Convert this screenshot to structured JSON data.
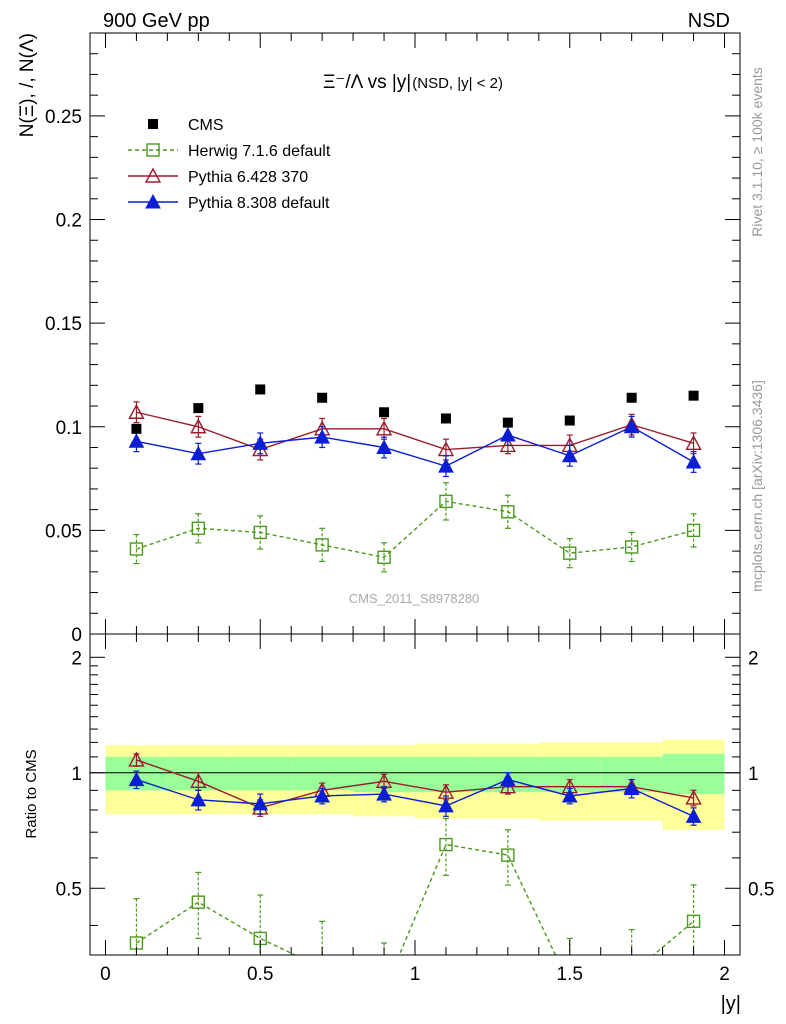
{
  "header": {
    "left": "900 GeV pp",
    "right": "NSD"
  },
  "side_labels": {
    "rivet": "Rivet 3.1.10, ≥ 100k events",
    "mcplots": "mcplots.cern.ch [arXiv:1306.3436]"
  },
  "plot_title": {
    "main": "Ξ⁻/Λ vs |y|",
    "sub": "(NSD, |y| < 2)"
  },
  "watermark": "CMS_2011_S8978280",
  "colors": {
    "cms": "#000000",
    "herwig": "#4a9a1c",
    "pythia6": "#9b1b2e",
    "pythia8": "#0a1ed6",
    "band_outer": "#ffff99",
    "band_inner": "#99ff99"
  },
  "chart_data": [
    {
      "type": "scatter",
      "name": "main",
      "ylabel": "N(Ξ), /, N(Λ)",
      "xlim": [
        -0.05,
        2.05
      ],
      "ylim": [
        0,
        0.29
      ],
      "yticks": [
        {
          "v": 0,
          "label": "0"
        },
        {
          "v": 0.05,
          "label": "0.05"
        },
        {
          "v": 0.1,
          "label": "0.1"
        },
        {
          "v": 0.15,
          "label": "0.15"
        },
        {
          "v": 0.2,
          "label": "0.2"
        },
        {
          "v": 0.25,
          "label": "0.25"
        }
      ],
      "x": [
        0.1,
        0.3,
        0.5,
        0.7,
        0.9,
        1.1,
        1.3,
        1.5,
        1.7,
        1.9
      ],
      "legend": [
        {
          "key": "cms",
          "label": "CMS"
        },
        {
          "key": "herwig",
          "label": "Herwig 7.1.6 default"
        },
        {
          "key": "pythia6",
          "label": "Pythia 6.428 370"
        },
        {
          "key": "pythia8",
          "label": "Pythia 8.308 default"
        }
      ],
      "series": [
        {
          "key": "cms",
          "values": [
            0.099,
            0.109,
            0.118,
            0.114,
            0.107,
            0.104,
            0.102,
            0.103,
            0.114,
            0.115
          ]
        },
        {
          "key": "herwig",
          "values": [
            0.041,
            0.051,
            0.049,
            0.043,
            0.037,
            0.064,
            0.059,
            0.039,
            0.042,
            0.05
          ],
          "errors": [
            0.007,
            0.007,
            0.008,
            0.008,
            0.007,
            0.009,
            0.008,
            0.007,
            0.007,
            0.008
          ]
        },
        {
          "key": "pythia6",
          "values": [
            0.107,
            0.1,
            0.089,
            0.099,
            0.099,
            0.089,
            0.091,
            0.091,
            0.101,
            0.092
          ],
          "errors": [
            0.005,
            0.005,
            0.005,
            0.005,
            0.005,
            0.005,
            0.004,
            0.005,
            0.005,
            0.005
          ]
        },
        {
          "key": "pythia8",
          "values": [
            0.093,
            0.087,
            0.092,
            0.095,
            0.09,
            0.081,
            0.096,
            0.086,
            0.1,
            0.083
          ],
          "errors": [
            0.005,
            0.005,
            0.005,
            0.005,
            0.005,
            0.005,
            0.005,
            0.005,
            0.005,
            0.005
          ]
        }
      ]
    },
    {
      "type": "scatter",
      "name": "ratio",
      "ylabel": "Ratio to CMS",
      "xlabel": "|y|",
      "xlim": [
        -0.05,
        2.05
      ],
      "ylim": [
        0.335,
        2.3
      ],
      "yticks": [
        {
          "v": 0.5,
          "label": "0.5"
        },
        {
          "v": 1,
          "label": "1"
        },
        {
          "v": 2,
          "label": "2"
        }
      ],
      "xticks": [
        {
          "v": 0,
          "label": "0"
        },
        {
          "v": 0.5,
          "label": "0.5"
        },
        {
          "v": 1,
          "label": "1"
        },
        {
          "v": 1.5,
          "label": "1.5"
        },
        {
          "v": 2,
          "label": "2"
        }
      ],
      "bins": [
        [
          0,
          0.2
        ],
        [
          0.2,
          0.4
        ],
        [
          0.4,
          0.6
        ],
        [
          0.6,
          0.8
        ],
        [
          0.8,
          1.0
        ],
        [
          1.0,
          1.2
        ],
        [
          1.2,
          1.4
        ],
        [
          1.4,
          1.6
        ],
        [
          1.6,
          1.8
        ],
        [
          1.8,
          2.0
        ]
      ],
      "band_outer": [
        [
          0.78,
          1.18
        ],
        [
          0.78,
          1.18
        ],
        [
          0.78,
          1.18
        ],
        [
          0.78,
          1.18
        ],
        [
          0.77,
          1.18
        ],
        [
          0.76,
          1.19
        ],
        [
          0.76,
          1.19
        ],
        [
          0.75,
          1.2
        ],
        [
          0.75,
          1.2
        ],
        [
          0.71,
          1.22
        ]
      ],
      "band_inner": [
        [
          0.9,
          1.1
        ],
        [
          0.9,
          1.1
        ],
        [
          0.9,
          1.1
        ],
        [
          0.9,
          1.1
        ],
        [
          0.89,
          1.1
        ],
        [
          0.89,
          1.1
        ],
        [
          0.89,
          1.1
        ],
        [
          0.89,
          1.1
        ],
        [
          0.89,
          1.1
        ],
        [
          0.88,
          1.12
        ]
      ],
      "series": [
        {
          "key": "herwig",
          "values": [
            0.36,
            0.46,
            0.37,
            0.31,
            0.27,
            0.65,
            0.61,
            0.28,
            0.3,
            0.41
          ],
          "errors": [
            0.11,
            0.09,
            0.11,
            0.1,
            0.09,
            0.11,
            0.1,
            0.09,
            0.09,
            0.1
          ]
        },
        {
          "key": "pythia6",
          "values": [
            1.08,
            0.95,
            0.81,
            0.9,
            0.95,
            0.89,
            0.92,
            0.92,
            0.92,
            0.86
          ],
          "errors": [
            0.04,
            0.05,
            0.04,
            0.04,
            0.04,
            0.04,
            0.04,
            0.04,
            0.04,
            0.04
          ]
        },
        {
          "key": "pythia8",
          "values": [
            0.96,
            0.85,
            0.83,
            0.87,
            0.88,
            0.82,
            0.96,
            0.87,
            0.91,
            0.77
          ],
          "errors": [
            0.05,
            0.05,
            0.05,
            0.04,
            0.04,
            0.05,
            0.04,
            0.04,
            0.05,
            0.04
          ]
        }
      ]
    }
  ]
}
